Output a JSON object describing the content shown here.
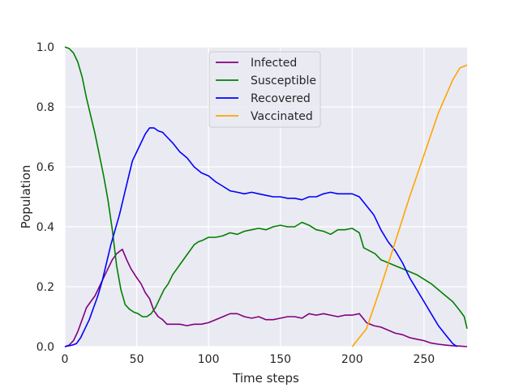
{
  "chart_data": {
    "type": "line",
    "title": "",
    "xlabel": "Time steps",
    "ylabel": "Population",
    "xlim": [
      0,
      280
    ],
    "ylim": [
      0,
      1.0
    ],
    "xticks": [
      0,
      50,
      100,
      150,
      200,
      250
    ],
    "yticks": [
      0.0,
      0.2,
      0.4,
      0.6,
      0.8,
      1.0
    ],
    "xtick_labels": [
      "0",
      "50",
      "100",
      "150",
      "200",
      "250"
    ],
    "ytick_labels": [
      "0.0",
      "0.2",
      "0.4",
      "0.6",
      "0.8",
      "1.0"
    ],
    "grid": true,
    "legend_position": "top-center",
    "background_color": "#eaeaf2",
    "series": [
      {
        "name": "Infected",
        "color": "#800080",
        "points": [
          [
            0,
            0.0
          ],
          [
            3,
            0.005
          ],
          [
            6,
            0.02
          ],
          [
            9,
            0.05
          ],
          [
            12,
            0.09
          ],
          [
            15,
            0.13
          ],
          [
            18,
            0.15
          ],
          [
            21,
            0.17
          ],
          [
            24,
            0.2
          ],
          [
            27,
            0.23
          ],
          [
            30,
            0.26
          ],
          [
            33,
            0.29
          ],
          [
            36,
            0.31
          ],
          [
            40,
            0.325
          ],
          [
            43,
            0.29
          ],
          [
            46,
            0.26
          ],
          [
            50,
            0.23
          ],
          [
            53,
            0.21
          ],
          [
            56,
            0.18
          ],
          [
            59,
            0.16
          ],
          [
            62,
            0.12
          ],
          [
            65,
            0.1
          ],
          [
            68,
            0.09
          ],
          [
            71,
            0.075
          ],
          [
            75,
            0.075
          ],
          [
            80,
            0.075
          ],
          [
            85,
            0.07
          ],
          [
            90,
            0.075
          ],
          [
            95,
            0.075
          ],
          [
            100,
            0.08
          ],
          [
            105,
            0.09
          ],
          [
            110,
            0.1
          ],
          [
            115,
            0.11
          ],
          [
            120,
            0.11
          ],
          [
            125,
            0.1
          ],
          [
            130,
            0.095
          ],
          [
            135,
            0.1
          ],
          [
            140,
            0.09
          ],
          [
            145,
            0.09
          ],
          [
            150,
            0.095
          ],
          [
            155,
            0.1
          ],
          [
            160,
            0.1
          ],
          [
            165,
            0.095
          ],
          [
            170,
            0.11
          ],
          [
            175,
            0.105
          ],
          [
            180,
            0.11
          ],
          [
            185,
            0.105
          ],
          [
            190,
            0.1
          ],
          [
            195,
            0.105
          ],
          [
            200,
            0.105
          ],
          [
            205,
            0.11
          ],
          [
            210,
            0.08
          ],
          [
            215,
            0.07
          ],
          [
            220,
            0.065
          ],
          [
            225,
            0.055
          ],
          [
            230,
            0.045
          ],
          [
            235,
            0.04
          ],
          [
            240,
            0.03
          ],
          [
            245,
            0.025
          ],
          [
            250,
            0.02
          ],
          [
            255,
            0.012
          ],
          [
            260,
            0.008
          ],
          [
            265,
            0.005
          ],
          [
            270,
            0.003
          ],
          [
            275,
            0.002
          ],
          [
            280,
            0.0
          ]
        ]
      },
      {
        "name": "Susceptible",
        "color": "#008000",
        "points": [
          [
            0,
            1.0
          ],
          [
            3,
            0.995
          ],
          [
            6,
            0.98
          ],
          [
            9,
            0.95
          ],
          [
            12,
            0.9
          ],
          [
            15,
            0.83
          ],
          [
            18,
            0.77
          ],
          [
            21,
            0.71
          ],
          [
            24,
            0.64
          ],
          [
            27,
            0.57
          ],
          [
            30,
            0.49
          ],
          [
            33,
            0.39
          ],
          [
            36,
            0.27
          ],
          [
            39,
            0.19
          ],
          [
            42,
            0.14
          ],
          [
            45,
            0.125
          ],
          [
            48,
            0.115
          ],
          [
            51,
            0.11
          ],
          [
            54,
            0.1
          ],
          [
            57,
            0.1
          ],
          [
            60,
            0.11
          ],
          [
            63,
            0.13
          ],
          [
            66,
            0.16
          ],
          [
            69,
            0.19
          ],
          [
            72,
            0.21
          ],
          [
            75,
            0.24
          ],
          [
            78,
            0.26
          ],
          [
            81,
            0.28
          ],
          [
            84,
            0.3
          ],
          [
            87,
            0.32
          ],
          [
            90,
            0.34
          ],
          [
            93,
            0.35
          ],
          [
            96,
            0.355
          ],
          [
            100,
            0.365
          ],
          [
            105,
            0.365
          ],
          [
            110,
            0.37
          ],
          [
            115,
            0.38
          ],
          [
            120,
            0.375
          ],
          [
            125,
            0.385
          ],
          [
            130,
            0.39
          ],
          [
            135,
            0.395
          ],
          [
            140,
            0.39
          ],
          [
            145,
            0.4
          ],
          [
            150,
            0.405
          ],
          [
            155,
            0.4
          ],
          [
            160,
            0.4
          ],
          [
            165,
            0.415
          ],
          [
            170,
            0.405
          ],
          [
            175,
            0.39
          ],
          [
            180,
            0.385
          ],
          [
            185,
            0.375
          ],
          [
            190,
            0.39
          ],
          [
            195,
            0.39
          ],
          [
            200,
            0.395
          ],
          [
            205,
            0.38
          ],
          [
            208,
            0.33
          ],
          [
            212,
            0.32
          ],
          [
            216,
            0.31
          ],
          [
            220,
            0.29
          ],
          [
            225,
            0.28
          ],
          [
            230,
            0.27
          ],
          [
            235,
            0.26
          ],
          [
            240,
            0.25
          ],
          [
            245,
            0.24
          ],
          [
            250,
            0.225
          ],
          [
            255,
            0.21
          ],
          [
            260,
            0.19
          ],
          [
            265,
            0.17
          ],
          [
            270,
            0.15
          ],
          [
            275,
            0.12
          ],
          [
            278,
            0.1
          ],
          [
            280,
            0.06
          ]
        ]
      },
      {
        "name": "Recovered",
        "color": "#0000ff",
        "points": [
          [
            0,
            0.0
          ],
          [
            5,
            0.005
          ],
          [
            8,
            0.01
          ],
          [
            11,
            0.03
          ],
          [
            14,
            0.06
          ],
          [
            17,
            0.09
          ],
          [
            20,
            0.13
          ],
          [
            23,
            0.17
          ],
          [
            26,
            0.22
          ],
          [
            29,
            0.28
          ],
          [
            32,
            0.34
          ],
          [
            35,
            0.39
          ],
          [
            38,
            0.44
          ],
          [
            41,
            0.5
          ],
          [
            44,
            0.56
          ],
          [
            47,
            0.62
          ],
          [
            50,
            0.65
          ],
          [
            53,
            0.68
          ],
          [
            56,
            0.71
          ],
          [
            59,
            0.73
          ],
          [
            62,
            0.73
          ],
          [
            65,
            0.72
          ],
          [
            68,
            0.715
          ],
          [
            71,
            0.7
          ],
          [
            75,
            0.68
          ],
          [
            80,
            0.65
          ],
          [
            85,
            0.63
          ],
          [
            90,
            0.6
          ],
          [
            95,
            0.58
          ],
          [
            100,
            0.57
          ],
          [
            105,
            0.55
          ],
          [
            110,
            0.535
          ],
          [
            115,
            0.52
          ],
          [
            120,
            0.515
          ],
          [
            125,
            0.51
          ],
          [
            130,
            0.515
          ],
          [
            135,
            0.51
          ],
          [
            140,
            0.505
          ],
          [
            145,
            0.5
          ],
          [
            150,
            0.5
          ],
          [
            155,
            0.495
          ],
          [
            160,
            0.495
          ],
          [
            165,
            0.49
          ],
          [
            170,
            0.5
          ],
          [
            175,
            0.5
          ],
          [
            180,
            0.51
          ],
          [
            185,
            0.515
          ],
          [
            190,
            0.51
          ],
          [
            195,
            0.51
          ],
          [
            200,
            0.51
          ],
          [
            205,
            0.5
          ],
          [
            210,
            0.47
          ],
          [
            215,
            0.44
          ],
          [
            220,
            0.39
          ],
          [
            225,
            0.35
          ],
          [
            230,
            0.32
          ],
          [
            235,
            0.28
          ],
          [
            240,
            0.23
          ],
          [
            245,
            0.19
          ],
          [
            250,
            0.15
          ],
          [
            255,
            0.11
          ],
          [
            260,
            0.07
          ],
          [
            265,
            0.04
          ],
          [
            270,
            0.01
          ],
          [
            273,
            0.0
          ]
        ]
      },
      {
        "name": "Vaccinated",
        "color": "#ffa500",
        "points": [
          [
            200,
            0.0
          ],
          [
            210,
            0.06
          ],
          [
            220,
            0.2
          ],
          [
            230,
            0.35
          ],
          [
            240,
            0.5
          ],
          [
            250,
            0.64
          ],
          [
            260,
            0.78
          ],
          [
            270,
            0.89
          ],
          [
            275,
            0.93
          ],
          [
            280,
            0.94
          ]
        ]
      }
    ]
  }
}
